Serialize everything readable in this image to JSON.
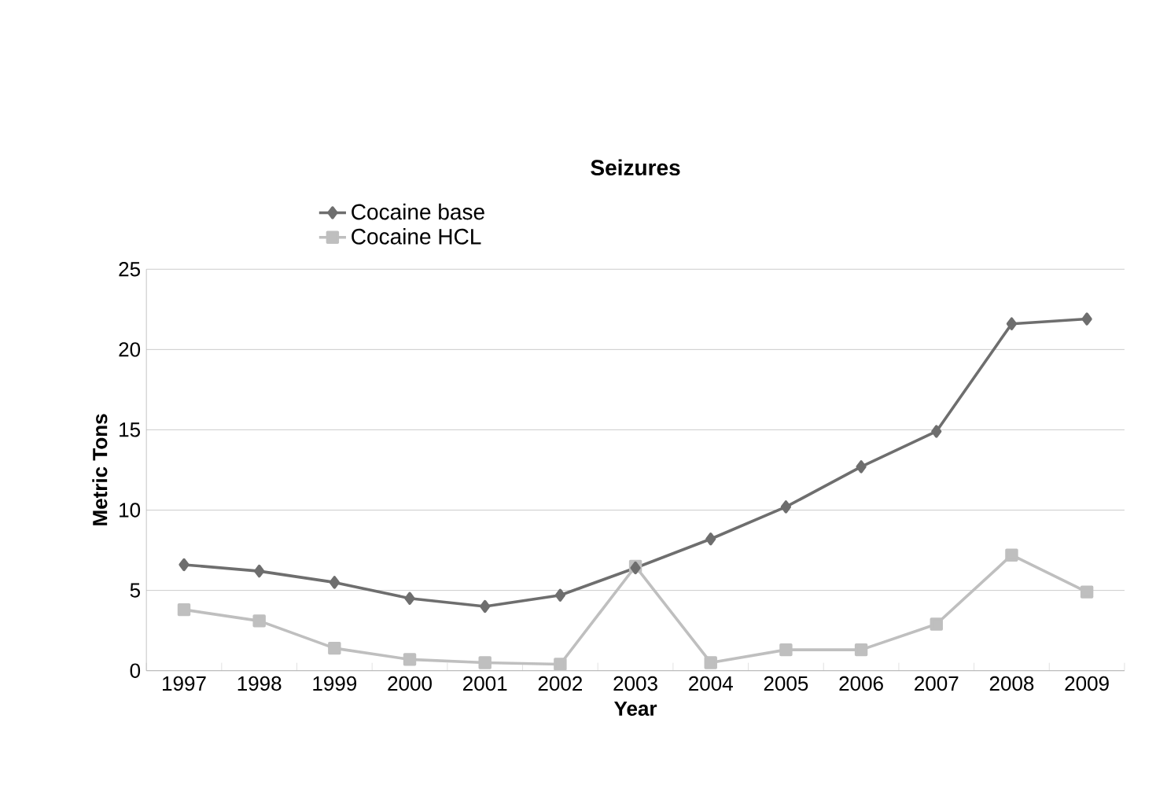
{
  "chart_data": {
    "type": "line",
    "title": "Seizures",
    "xlabel": "Year",
    "ylabel": "Metric Tons",
    "categories": [
      "1997",
      "1998",
      "1999",
      "2000",
      "2001",
      "2002",
      "2003",
      "2004",
      "2005",
      "2006",
      "2007",
      "2008",
      "2009"
    ],
    "series": [
      {
        "name": "Cocaine base",
        "color": "#6e6e6e",
        "marker": "diamond",
        "values": [
          6.6,
          6.2,
          5.5,
          4.5,
          4.0,
          4.7,
          6.4,
          8.2,
          10.2,
          12.7,
          14.9,
          21.6,
          21.9
        ]
      },
      {
        "name": "Cocaine HCL",
        "color": "#bfbfbf",
        "marker": "square",
        "values": [
          3.8,
          3.1,
          1.4,
          0.7,
          0.5,
          0.4,
          6.5,
          0.5,
          1.3,
          1.3,
          2.9,
          7.2,
          4.9
        ]
      }
    ],
    "ylim": [
      0,
      25
    ],
    "yticks": [
      0,
      5,
      10,
      15,
      20,
      25
    ],
    "grid": "y",
    "legend": "top left",
    "line_style": "solid"
  }
}
